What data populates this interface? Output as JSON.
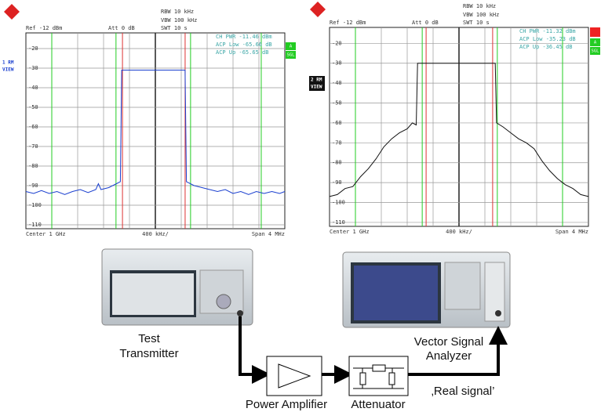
{
  "screens": [
    {
      "rbw": "RBW 10 kHz",
      "vbw": "VBW 100 kHz",
      "swt": "SWT 10 s",
      "ref": "Ref -12 dBm",
      "att": "Att 0 dB",
      "trace_label": [
        "1 RM",
        "VIEW"
      ],
      "meas": [
        "CH PWR   -11.46 dBm",
        "ACP Low  -65.66 dB",
        "ACP Up   -65.65 dB"
      ],
      "side": [
        "A",
        "SGL"
      ],
      "footer": [
        "Center 1 GHz",
        "400 kHz/",
        "Span 4 MHz"
      ],
      "ylim": [
        -112,
        -12
      ],
      "yticks": [
        -20,
        -30,
        -40,
        -50,
        -60,
        -70,
        -80,
        -90,
        -100,
        -110
      ],
      "xlim": [
        0,
        10
      ],
      "color": "#1a3fcf",
      "trace": {
        "x": [
          0,
          0.3,
          0.6,
          0.9,
          1.2,
          1.5,
          1.8,
          2.1,
          2.4,
          2.7,
          2.8,
          2.9,
          3.2,
          3.5,
          3.65,
          3.7,
          6.15,
          6.2,
          6.5,
          6.8,
          7.1,
          7.4,
          7.7,
          8.0,
          8.3,
          8.6,
          8.9,
          9.2,
          9.5,
          9.8,
          10
        ],
        "y": [
          -93,
          -94,
          -92.5,
          -94,
          -93,
          -94.5,
          -93,
          -92,
          -93.5,
          -92,
          -89,
          -92,
          -91,
          -89,
          -88,
          -31,
          -31,
          -88,
          -90,
          -91,
          -92,
          -93,
          -92,
          -94,
          -93,
          -94.5,
          -93,
          -94,
          -93,
          -94,
          -93
        ]
      }
    },
    {
      "rbw": "RBW 10 kHz",
      "vbw": "VBW 100 kHz",
      "swt": "SWT 10 s",
      "ref": "Ref -12 dBm",
      "att": "Att 0 dB",
      "trace_label": [
        "2 RM",
        "VIEW"
      ],
      "meas": [
        "CH PWR   -11.32 dBm",
        "ACP Low  -35.23 dB",
        "ACP Up   -36.45 dB"
      ],
      "side": [
        "A",
        "SGL"
      ],
      "footer": [
        "Center 1 GHz",
        "400 kHz/",
        "Span 4 MHz"
      ],
      "ylim": [
        -112,
        -12
      ],
      "yticks": [
        -20,
        -30,
        -40,
        -50,
        -60,
        -70,
        -80,
        -90,
        -100,
        -110
      ],
      "xlim": [
        0,
        10
      ],
      "color": "#111111",
      "trace": {
        "x": [
          0,
          0.3,
          0.6,
          0.9,
          1.2,
          1.5,
          1.8,
          2.1,
          2.4,
          2.7,
          3.0,
          3.2,
          3.35,
          3.4,
          6.4,
          6.45,
          6.7,
          7.0,
          7.3,
          7.6,
          7.9,
          8.2,
          8.5,
          8.8,
          9.1,
          9.4,
          9.7,
          10
        ],
        "y": [
          -97,
          -96,
          -93,
          -92,
          -87,
          -83,
          -78,
          -72,
          -68,
          -65,
          -63,
          -60,
          -61,
          -30,
          -30,
          -60,
          -62,
          -65,
          -68,
          -70,
          -73,
          -79,
          -84,
          -88,
          -91,
          -93,
          -96,
          -97
        ]
      }
    }
  ],
  "diagram": {
    "transmitter": [
      "Test",
      "Transmitter"
    ],
    "analyzer": [
      "Vector Signal",
      "Analyzer"
    ],
    "amplifier": "Power Amplifier",
    "attenuator": "Attenuator",
    "signal": "‚Real signal’"
  }
}
